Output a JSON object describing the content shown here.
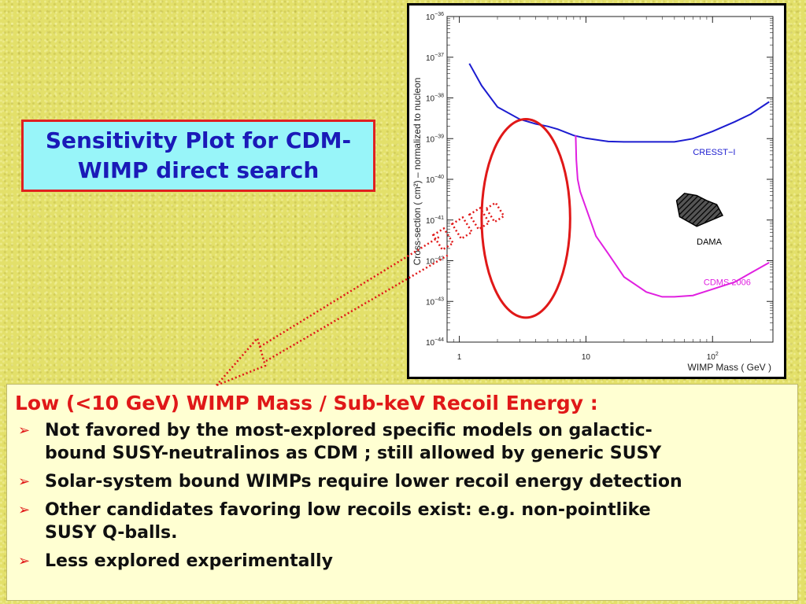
{
  "title_box": {
    "line1": "Sensitivity Plot for CDM-",
    "line2": "WIMP direct search"
  },
  "text_box": {
    "heading": "Low (<10 GeV) WIMP Mass / Sub-keV Recoil Energy :",
    "bullets": [
      {
        "line1": "Not favored by the most-explored specific models on galactic-",
        "line2": "bound SUSY-neutralinos as CDM ; still allowed by generic SUSY"
      },
      {
        "line1": "Solar-system bound WIMPs require lower recoil energy detection",
        "line2": ""
      },
      {
        "line1": "Other candidates favoring low recoils exist: e.g. non-pointlike",
        "line2": "SUSY Q-balls."
      },
      {
        "line1": "Less explored experimentally",
        "line2": ""
      }
    ],
    "bullet_icon": "arrowhead-bullet-icon"
  },
  "colors": {
    "background": "#e3e06a",
    "title_fill": "#98f5f9",
    "title_border": "#e02020",
    "title_text": "#1a1ab8",
    "heading_text": "#e01818",
    "cresst": "#1c1cd0",
    "cdms": "#e020e0",
    "highlight": "#e01818"
  },
  "chart_data": {
    "type": "line",
    "xlabel": "WIMP Mass ( GeV )",
    "ylabel": "Cross-section ( cm²) – normalized to nucleon",
    "xscale": "log",
    "yscale": "log",
    "xlim": [
      0.8,
      300
    ],
    "ylim": [
      1e-44,
      1e-36
    ],
    "x_ticks": [
      {
        "value": 1,
        "label": "1"
      },
      {
        "value": 10,
        "label": "10"
      },
      {
        "value": 100,
        "label": "10",
        "sup": "2"
      }
    ],
    "y_ticks": [
      {
        "value": 1e-36,
        "label": "10",
        "sup": "−36"
      },
      {
        "value": 1e-37,
        "label": "10",
        "sup": "−37"
      },
      {
        "value": 1e-38,
        "label": "10",
        "sup": "−38"
      },
      {
        "value": 1e-39,
        "label": "10",
        "sup": "−39"
      },
      {
        "value": 1e-40,
        "label": "10",
        "sup": "−40"
      },
      {
        "value": 1e-41,
        "label": "10",
        "sup": "−41"
      },
      {
        "value": 1e-42,
        "label": "10",
        "sup": "−42"
      },
      {
        "value": 1e-43,
        "label": "10",
        "sup": "−43"
      },
      {
        "value": 1e-44,
        "label": "10",
        "sup": "−44"
      }
    ],
    "series": [
      {
        "name": "CRESST−I",
        "color": "#1c1cd0",
        "x": [
          1.2,
          1.5,
          2,
          3,
          4,
          5,
          6,
          8,
          10,
          15,
          20,
          30,
          50,
          70,
          100,
          150,
          200,
          280
        ],
        "y": [
          7e-38,
          2e-38,
          6e-39,
          3e-39,
          2.3e-39,
          2e-39,
          1.7e-39,
          1.2e-39,
          1.02e-39,
          8.5e-40,
          8.3e-40,
          8.3e-40,
          8.3e-40,
          1e-39,
          1.5e-39,
          2.6e-39,
          4e-39,
          8e-39
        ]
      },
      {
        "name": "CDMS 2006",
        "color": "#e020e0",
        "x": [
          8.3,
          8.4,
          8.6,
          9,
          10,
          12,
          15,
          20,
          30,
          40,
          50,
          70,
          100,
          150,
          200,
          280
        ],
        "y": [
          1.2e-39,
          3e-40,
          1e-40,
          5e-41,
          2e-41,
          4e-42,
          1.5e-42,
          4e-43,
          1.7e-43,
          1.3e-43,
          1.3e-43,
          1.4e-43,
          2e-43,
          3e-43,
          5e-43,
          9e-43
        ]
      }
    ],
    "region": {
      "name": "DAMA",
      "fill": "hatched",
      "x": [
        52,
        55,
        75,
        120,
        108,
        90,
        75,
        60,
        52
      ],
      "y": [
        3e-41,
        1.2e-41,
        7e-42,
        1.3e-41,
        2.4e-41,
        3e-41,
        4e-41,
        4.5e-41,
        3e-41
      ]
    },
    "annotations": [
      {
        "text": "CRESST−I",
        "x": 70,
        "y": 4e-40,
        "color": "#1c1cd0"
      },
      {
        "text": "DAMA",
        "x": 75,
        "y": 2.5e-42,
        "color": "#000000"
      },
      {
        "text": "CDMS 2006",
        "x": 85,
        "y": 2.5e-43,
        "color": "#e020e0"
      }
    ],
    "highlight_ellipse": {
      "x_range": [
        1.5,
        7.5
      ],
      "y_range": [
        4e-44,
        3e-39
      ]
    },
    "grid": false,
    "legend": "none"
  }
}
